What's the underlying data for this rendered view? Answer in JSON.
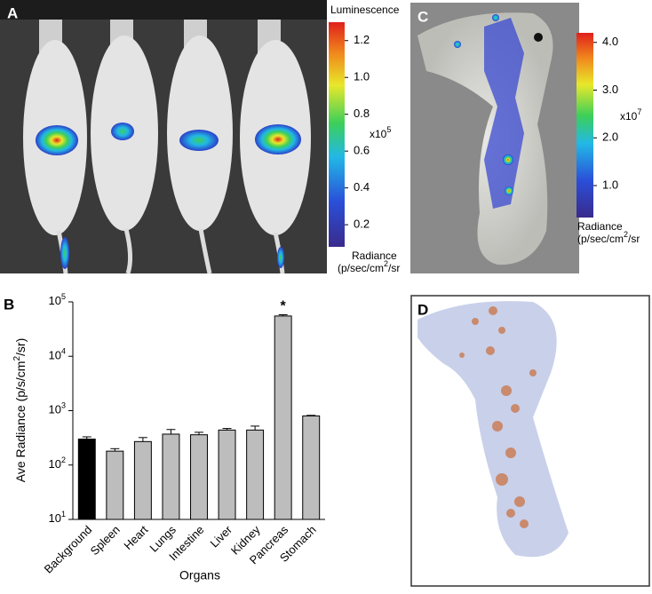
{
  "panels": {
    "a": "A",
    "b": "B",
    "c": "C",
    "d": "D"
  },
  "colorbar_a": {
    "title": "Luminescence",
    "multiplier": "x10",
    "exponent": "5",
    "label": "Radiance",
    "unit": [
      "(p/sec/cm",
      "2",
      "/sr"
    ],
    "lim": [
      0.08,
      1.3
    ],
    "ticks": [
      0.2,
      0.4,
      0.6,
      0.8,
      {
        "value": 1,
        "label": "1.0"
      },
      1.2
    ]
  },
  "colorbar_c": {
    "multiplier": "x10",
    "exponent": "7",
    "label": "Radiance",
    "unit": [
      "(p/sec/cm",
      "2",
      "/sr"
    ],
    "lim": [
      0.33,
      4.2
    ],
    "ticks": [
      {
        "value": 1,
        "label": "1.0"
      },
      {
        "value": 2,
        "label": "2.0"
      },
      {
        "value": 3,
        "label": "3.0"
      },
      {
        "value": 4,
        "label": "4.0"
      }
    ]
  },
  "chart_data": {
    "type": "bar",
    "y_label": [
      "Ave Radiance (p/s/cm",
      "2",
      "/sr)"
    ],
    "x_label": "Organs",
    "categories": [
      "Background",
      "Spleen",
      "Heart",
      "Lungs",
      "Intestine",
      "Liver",
      "Kidney",
      "Pancreas",
      "Stomach"
    ],
    "values": [
      300,
      180,
      270,
      370,
      360,
      440,
      440,
      55000,
      800
    ],
    "errors": [
      30,
      20,
      50,
      80,
      40,
      30,
      80,
      3000,
      20
    ],
    "colors": [
      "#000000",
      "#bdbdbd",
      "#bdbdbd",
      "#bdbdbd",
      "#bdbdbd",
      "#bdbdbd",
      "#bdbdbd",
      "#bdbdbd",
      "#bdbdbd"
    ],
    "log_y": true,
    "ylim": [
      10,
      100000
    ],
    "yticks": [
      {
        "value": 10,
        "base": "10",
        "exponent": "1"
      },
      {
        "value": 100,
        "base": "10",
        "exponent": "2"
      },
      {
        "value": 1000,
        "base": "10",
        "exponent": "3"
      },
      {
        "value": 10000,
        "base": "10",
        "exponent": "4"
      },
      {
        "value": 100000,
        "base": "10",
        "exponent": "5"
      }
    ],
    "annotation": {
      "text": "*",
      "category": 7
    }
  }
}
